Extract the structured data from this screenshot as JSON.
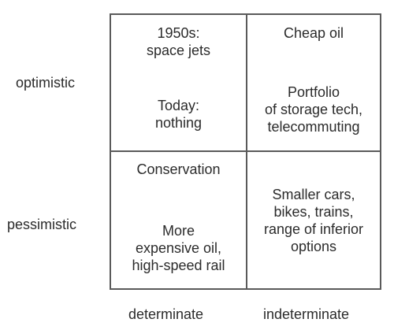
{
  "rows": {
    "top_label": "optimistic",
    "bottom_label": "pessimistic"
  },
  "columns": {
    "left_label": "determinate",
    "right_label": "indeterminate"
  },
  "quadrants": {
    "optimistic_determinate": {
      "top_text": "1950s:\nspace jets",
      "bottom_text": "Today:\nnothing"
    },
    "optimistic_indeterminate": {
      "top_text": "Cheap oil",
      "bottom_text": "Portfolio\nof storage tech,\ntelecommuting"
    },
    "pessimistic_determinate": {
      "top_text": "Conservation",
      "bottom_text": "More\nexpensive oil,\nhigh-speed rail"
    },
    "pessimistic_indeterminate": {
      "text": "Smaller cars,\nbikes, trains,\nrange of inferior\noptions"
    }
  }
}
